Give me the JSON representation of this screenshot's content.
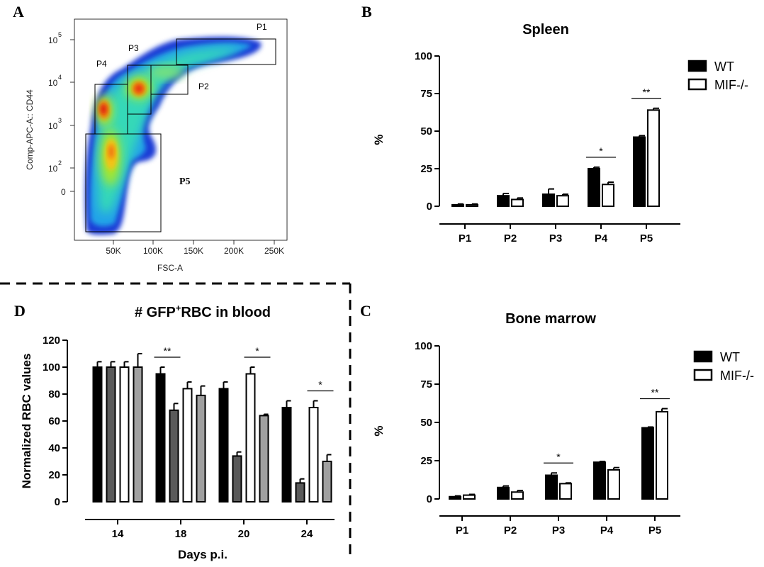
{
  "panel_labels": {
    "a": "A",
    "b": "B",
    "c": "C",
    "d": "D"
  },
  "colors": {
    "wt": "#000000",
    "mif": "#ffffff",
    "dark_gray": "#5a5a5a",
    "light_gray": "#a0a0a0"
  },
  "flow": {
    "x_axis_label": "FSC-A",
    "y_axis_label": "Comp-APC-A:: CD44",
    "x_ticks": [
      "50K",
      "100K",
      "150K",
      "200K",
      "250K"
    ],
    "y_ticks": [
      "10",
      "10",
      "10",
      "10",
      "0"
    ],
    "y_tick_exponents": [
      "5",
      "4",
      "3",
      "2",
      ""
    ],
    "gates": [
      "P1",
      "P2",
      "P3",
      "P4",
      "P5"
    ]
  },
  "chart_data": [
    {
      "id": "spleen",
      "type": "bar",
      "title": "Spleen",
      "ylabel": "%",
      "xlabel": "",
      "ylim": [
        0,
        100
      ],
      "yticks": [
        0,
        25,
        50,
        75,
        100
      ],
      "categories": [
        "P1",
        "P2",
        "P3",
        "P4",
        "P5"
      ],
      "series": [
        {
          "name": "WT",
          "color": "#000000",
          "values": [
            1,
            7,
            8,
            25,
            46
          ],
          "errors": [
            0.5,
            1.5,
            3.5,
            1,
            1
          ]
        },
        {
          "name": "MIF-/-",
          "color": "#ffffff",
          "values": [
            1,
            4.5,
            7,
            14.5,
            64
          ],
          "errors": [
            0.5,
            1,
            1,
            1.5,
            1.2
          ]
        }
      ],
      "significance": [
        {
          "category": "P4",
          "label": "*"
        },
        {
          "category": "P5",
          "label": "**"
        }
      ],
      "legend_position": "top-right"
    },
    {
      "id": "bone_marrow",
      "type": "bar",
      "title": "Bone marrow",
      "ylabel": "%",
      "xlabel": "",
      "ylim": [
        0,
        100
      ],
      "yticks": [
        0,
        25,
        50,
        75,
        100
      ],
      "categories": [
        "P1",
        "P2",
        "P3",
        "P4",
        "P5"
      ],
      "series": [
        {
          "name": "WT",
          "color": "#000000",
          "values": [
            1.5,
            7.5,
            15.5,
            24,
            46.5
          ],
          "errors": [
            0.5,
            1,
            1.5,
            0.5,
            0.5
          ]
        },
        {
          "name": "MIF-/-",
          "color": "#ffffff",
          "values": [
            2.5,
            4.5,
            10,
            19,
            57
          ],
          "errors": [
            0.5,
            1,
            0.5,
            1.5,
            2
          ]
        }
      ],
      "significance": [
        {
          "category": "P3",
          "label": "*"
        },
        {
          "category": "P5",
          "label": "**"
        }
      ],
      "legend_position": "top-right"
    },
    {
      "id": "gfp_rbc",
      "type": "bar",
      "title": "# GFP",
      "title_superscript": "+",
      "title_suffix": "RBC in blood",
      "ylabel": "Normalized RBC values",
      "xlabel": "Days p.i.",
      "ylim": [
        0,
        120
      ],
      "yticks": [
        0,
        20,
        40,
        60,
        80,
        100,
        120
      ],
      "categories": [
        "14",
        "18",
        "20",
        "24"
      ],
      "series": [
        {
          "color": "#000000",
          "values": [
            100,
            95,
            84,
            70
          ],
          "errors": [
            4,
            5,
            5,
            5
          ]
        },
        {
          "color": "#5a5a5a",
          "values": [
            100,
            68,
            34,
            14
          ],
          "errors": [
            4,
            5,
            3,
            3
          ]
        },
        {
          "color": "#ffffff",
          "values": [
            100,
            84,
            95,
            70
          ],
          "errors": [
            4,
            5,
            5,
            5
          ]
        },
        {
          "color": "#a0a0a0",
          "values": [
            100,
            79,
            64,
            30
          ],
          "errors": [
            10,
            7,
            1,
            5
          ]
        }
      ],
      "significance": [
        {
          "category": "18",
          "label": "**",
          "from_series": 0,
          "to_series": 1
        },
        {
          "category": "20",
          "label": "*",
          "from_series": 2,
          "to_series": 3
        },
        {
          "category": "24",
          "label": "*",
          "from_series": 2,
          "to_series": 3
        }
      ]
    }
  ]
}
